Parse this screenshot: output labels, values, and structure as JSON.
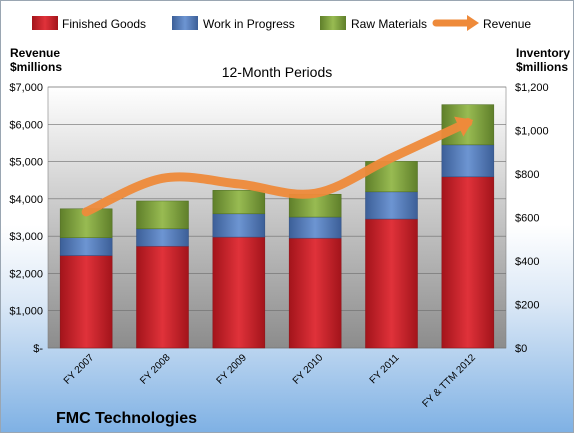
{
  "company": "FMC Technologies",
  "chart_data": {
    "type": "bar",
    "subtype": "stacked bar with line (dual axis)",
    "title": "12-Month Periods",
    "categories": [
      "FY 2007",
      "FY 2008",
      "FY 2009",
      "FY 2010",
      "FY 2011",
      "FY & TTM 2012"
    ],
    "left_axis": {
      "label_line1": "Revenue",
      "label_line2": "$millions",
      "range": [
        0,
        7000
      ],
      "ticks": [
        0,
        1000,
        2000,
        3000,
        4000,
        5000,
        6000,
        7000
      ],
      "tick_labels": [
        "$-",
        "$1,000",
        "$2,000",
        "$3,000",
        "$4,000",
        "$5,000",
        "$6,000",
        "$7,000"
      ]
    },
    "right_axis": {
      "label_line1": "Inventory",
      "label_line2": "$millions",
      "range": [
        0,
        1200
      ],
      "ticks": [
        0,
        200,
        400,
        600,
        800,
        1000,
        1200
      ],
      "tick_labels": [
        "$0",
        "$200",
        "$400",
        "$600",
        "$800",
        "$1,000",
        "$1,200"
      ]
    },
    "series": [
      {
        "name": "Finished Goods",
        "axis": "right",
        "kind": "bar",
        "color": "#d2232a",
        "values": [
          425,
          468,
          510,
          505,
          593,
          787
        ]
      },
      {
        "name": "Work in Progress",
        "axis": "right",
        "kind": "bar",
        "color": "#4f7cc1",
        "values": [
          82,
          80,
          107,
          97,
          125,
          147
        ]
      },
      {
        "name": "Raw Materials",
        "axis": "right",
        "kind": "bar",
        "color": "#7fa23c",
        "values": [
          133,
          128,
          108,
          105,
          140,
          185
        ]
      },
      {
        "name": "Revenue",
        "axis": "left",
        "kind": "line",
        "color": "#ee8a3a",
        "values": [
          3650,
          4550,
          4400,
          4150,
          5100,
          6050
        ]
      }
    ],
    "grid": true,
    "legend_position": "top"
  }
}
